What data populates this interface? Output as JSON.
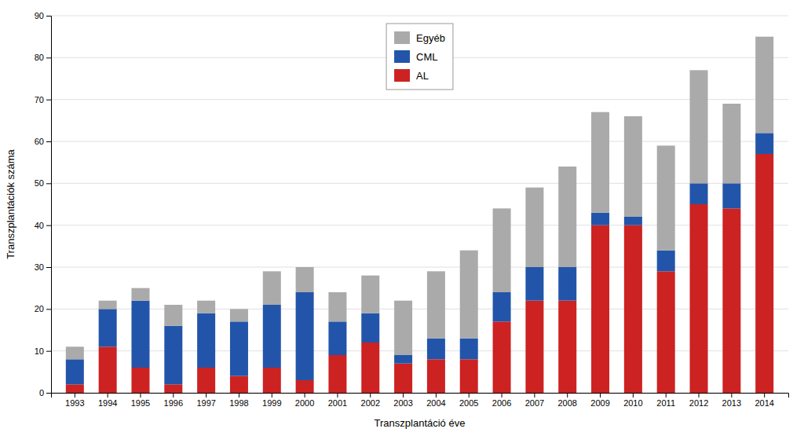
{
  "chart_data": {
    "type": "bar",
    "stacked": true,
    "xlabel": "Transzplantáció éve",
    "ylabel": "Transzplantációk száma",
    "categories": [
      "1993",
      "1994",
      "1995",
      "1996",
      "1997",
      "1998",
      "1999",
      "2000",
      "2001",
      "2002",
      "2003",
      "2004",
      "2005",
      "2006",
      "2007",
      "2008",
      "2009",
      "2010",
      "2011",
      "2012",
      "2013",
      "2014"
    ],
    "series": [
      {
        "name": "AL",
        "color": "#cc2222",
        "values": [
          2,
          11,
          6,
          2,
          6,
          4,
          6,
          3,
          9,
          12,
          7,
          8,
          8,
          17,
          22,
          22,
          40,
          40,
          29,
          45,
          44,
          57
        ]
      },
      {
        "name": "CML",
        "color": "#2255aa",
        "values": [
          6,
          9,
          16,
          14,
          13,
          13,
          15,
          21,
          8,
          7,
          2,
          5,
          5,
          7,
          8,
          8,
          3,
          2,
          5,
          5,
          6,
          5
        ]
      },
      {
        "name": "Egyéb",
        "color": "#aaaaaa",
        "values": [
          3,
          2,
          3,
          5,
          3,
          3,
          8,
          6,
          7,
          9,
          13,
          16,
          21,
          20,
          19,
          24,
          24,
          24,
          25,
          27,
          19,
          23
        ]
      }
    ],
    "ylim": [
      0,
      90
    ],
    "yticks": [
      0,
      10,
      20,
      30,
      40,
      50,
      60,
      70,
      80,
      90
    ],
    "grid": true,
    "legend": "upper center"
  }
}
